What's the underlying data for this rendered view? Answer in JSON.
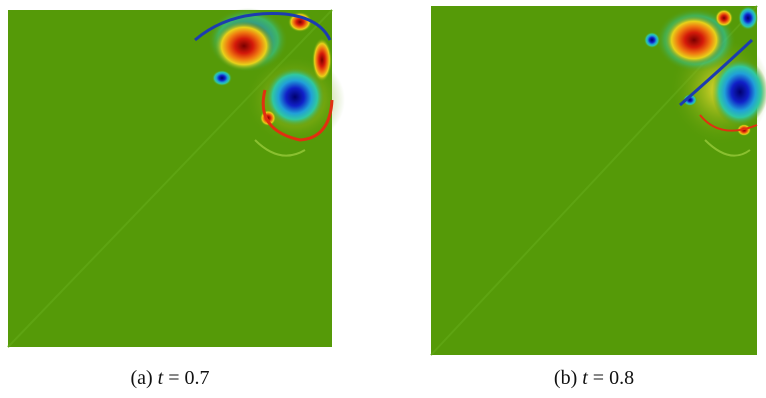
{
  "panels": [
    {
      "label": "(a)",
      "variable": "t",
      "value": "= 0.7"
    },
    {
      "label": "(b)",
      "variable": "t",
      "value": "= 0.8"
    }
  ]
}
